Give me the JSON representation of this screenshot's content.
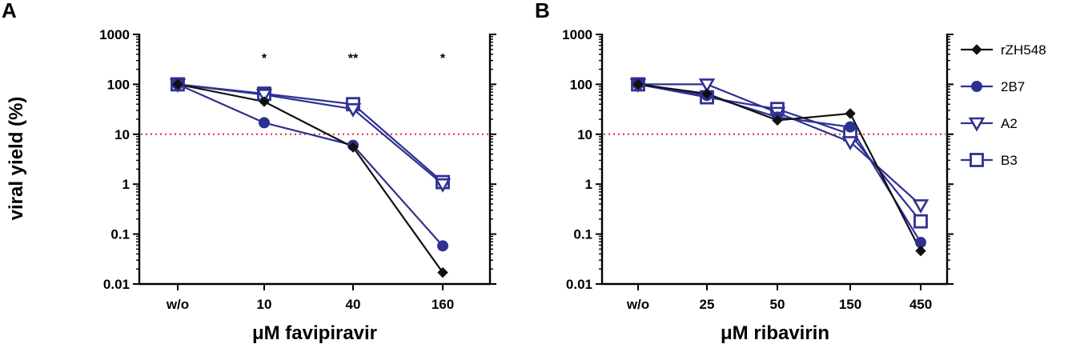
{
  "figure": {
    "ylabel": "viral yield (%)"
  },
  "legend": {
    "entries": [
      {
        "name": "rZH548",
        "color": "#111111",
        "marker": "diamond"
      },
      {
        "name": "2B7",
        "color": "#2e3192",
        "marker": "circle"
      },
      {
        "name": "A2",
        "color": "#2e3192",
        "marker": "triangle-down-open"
      },
      {
        "name": "B3",
        "color": "#2e3192",
        "marker": "square-open"
      }
    ]
  },
  "chart_data": [
    {
      "panel": "A",
      "type": "line",
      "title": "",
      "xlabel": "μM favipiravir",
      "ylabel": "viral yield (%)",
      "yscale": "log",
      "ylim": [
        0.01,
        1000
      ],
      "yticks": [
        0.01,
        0.1,
        1,
        10,
        100,
        1000
      ],
      "ytick_labels": [
        "0.01",
        "0.1",
        "1",
        "10",
        "100",
        "1000"
      ],
      "categories": [
        "w/o",
        "10",
        "40",
        "160"
      ],
      "threshold": 10,
      "annotations": [
        {
          "category_index": 1,
          "text": "*"
        },
        {
          "category_index": 2,
          "text": "**"
        },
        {
          "category_index": 3,
          "text": "*"
        }
      ],
      "series": [
        {
          "name": "rZH548",
          "values": [
            100,
            45,
            5.5,
            0.017
          ]
        },
        {
          "name": "2B7",
          "values": [
            100,
            17,
            6,
            0.058
          ]
        },
        {
          "name": "A2",
          "values": [
            100,
            62,
            32,
            1.0
          ]
        },
        {
          "name": "B3",
          "values": [
            100,
            65,
            40,
            1.1
          ]
        }
      ]
    },
    {
      "panel": "B",
      "type": "line",
      "title": "",
      "xlabel": "μM ribavirin",
      "ylabel": "",
      "yscale": "log",
      "ylim": [
        0.01,
        1000
      ],
      "yticks": [
        0.01,
        0.1,
        1,
        10,
        100,
        1000
      ],
      "ytick_labels": [
        "0.01",
        "0.1",
        "1",
        "10",
        "100",
        "1000"
      ],
      "categories": [
        "w/o",
        "25",
        "50",
        "150",
        "450"
      ],
      "threshold": 10,
      "annotations": [],
      "series": [
        {
          "name": "rZH548",
          "values": [
            100,
            65,
            19,
            26,
            0.046
          ]
        },
        {
          "name": "2B7",
          "values": [
            100,
            60,
            22,
            14,
            0.068
          ]
        },
        {
          "name": "A2",
          "values": [
            100,
            100,
            27,
            7,
            0.38
          ]
        },
        {
          "name": "B3",
          "values": [
            100,
            55,
            32,
            10,
            0.18
          ]
        }
      ]
    }
  ]
}
